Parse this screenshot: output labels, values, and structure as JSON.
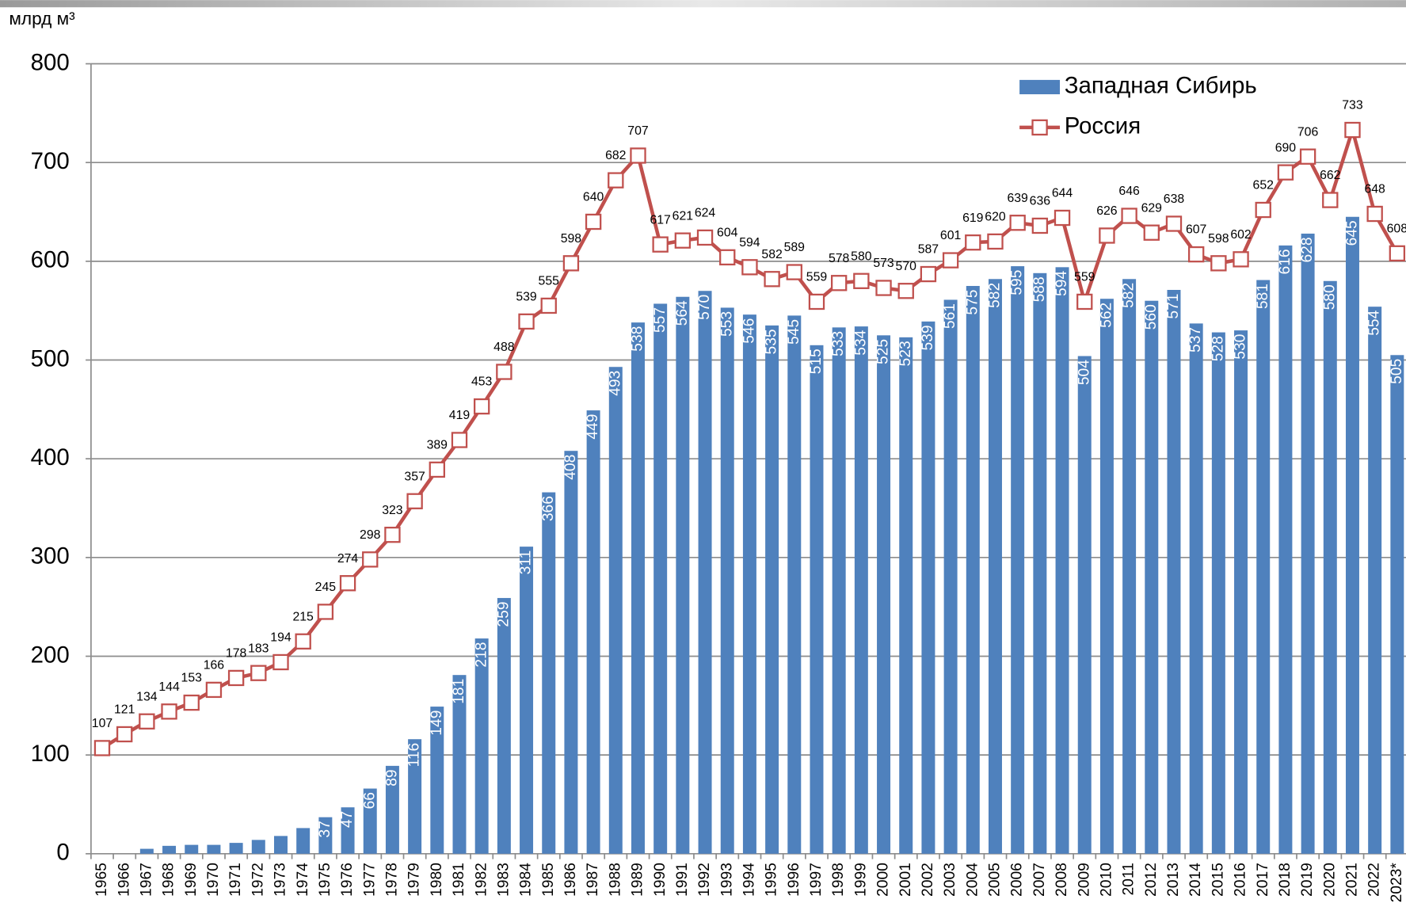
{
  "chart_data": {
    "type": "bar-line",
    "y_label": "млрд м³",
    "categories": [
      "1965",
      "1966",
      "1967",
      "1968",
      "1969",
      "1970",
      "1971",
      "1972",
      "1973",
      "1974",
      "1975",
      "1976",
      "1977",
      "1978",
      "1979",
      "1980",
      "1981",
      "1982",
      "1983",
      "1984",
      "1985",
      "1986",
      "1987",
      "1988",
      "1989",
      "1990",
      "1991",
      "1992",
      "1993",
      "1994",
      "1995",
      "1996",
      "1997",
      "1998",
      "1999",
      "2000",
      "2001",
      "2002",
      "2003",
      "2004",
      "2005",
      "2006",
      "2007",
      "2008",
      "2009",
      "2010",
      "2011",
      "2012",
      "2013",
      "2014",
      "2015",
      "2016",
      "2017",
      "2018",
      "2019",
      "2020",
      "2021",
      "2022",
      "2023*"
    ],
    "ylim": [
      0,
      800
    ],
    "yticks": [
      0,
      100,
      200,
      300,
      400,
      500,
      600,
      700,
      800
    ],
    "grid": true,
    "legend": "top-right",
    "series": [
      {
        "name": "Западная Сибирь",
        "type": "bar",
        "color": "#4f81bd",
        "values": [
          0,
          0,
          5,
          8,
          9,
          9,
          11,
          14,
          18,
          26,
          37,
          47,
          66,
          89,
          116,
          149,
          181,
          218,
          259,
          311,
          366,
          408,
          449,
          493,
          538,
          557,
          564,
          570,
          553,
          546,
          535,
          545,
          515,
          533,
          534,
          525,
          523,
          539,
          561,
          575,
          582,
          595,
          588,
          594,
          504,
          562,
          582,
          560,
          571,
          537,
          528,
          530,
          581,
          616,
          628,
          580,
          645,
          554,
          505
        ],
        "value_labels": [
          null,
          null,
          null,
          null,
          null,
          null,
          null,
          null,
          null,
          null,
          "37",
          "47",
          "66",
          "89",
          "116",
          "149",
          "181",
          "218",
          "259",
          "311",
          "366",
          "408",
          "449",
          "493",
          "538",
          "557",
          "564",
          "570",
          "553",
          "546",
          "535",
          "545",
          "515",
          "533",
          "534",
          "525",
          "523",
          "539",
          "561",
          "575",
          "582",
          "595",
          "588",
          "594",
          "504",
          "562",
          "582",
          "560",
          "571",
          "537",
          "528",
          "530",
          "581",
          "616",
          "628",
          "580",
          "645",
          "554",
          "505"
        ]
      },
      {
        "name": "Россия",
        "type": "line",
        "color": "#c0504d",
        "values": [
          107,
          121,
          134,
          144,
          153,
          166,
          178,
          183,
          194,
          215,
          245,
          274,
          298,
          323,
          357,
          389,
          419,
          453,
          488,
          539,
          555,
          598,
          640,
          682,
          707,
          617,
          621,
          624,
          604,
          594,
          582,
          589,
          559,
          578,
          580,
          573,
          570,
          587,
          601,
          619,
          620,
          639,
          636,
          644,
          559,
          626,
          646,
          629,
          638,
          607,
          598,
          602,
          652,
          690,
          706,
          662,
          733,
          648,
          608
        ]
      }
    ]
  }
}
